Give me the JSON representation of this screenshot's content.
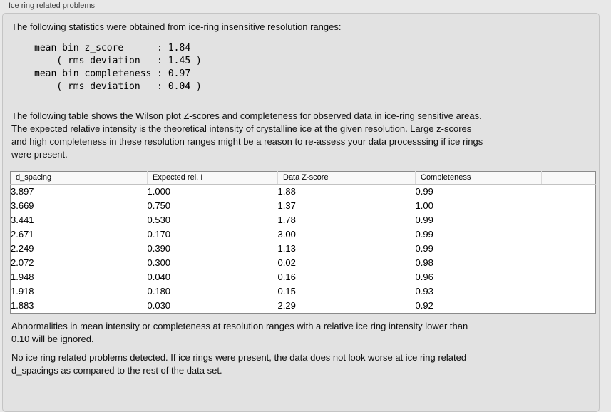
{
  "panel": {
    "title": "Ice ring related problems"
  },
  "intro": "The following statistics were obtained from ice-ring insensitive resolution ranges:",
  "stats_block": "mean bin z_score      : 1.84\n    ( rms deviation   : 1.45 )\nmean bin completeness : 0.97\n    ( rms deviation   : 0.04 )",
  "stats": {
    "mean_bin_z_score": "1.84",
    "z_score_rms_deviation": "1.45",
    "mean_bin_completeness": "0.97",
    "completeness_rms_deviation": "0.04"
  },
  "table_intro": "The following table shows the Wilson plot Z-scores and completeness for observed data in ice-ring sensitive areas.\nThe expected relative intensity is the theoretical intensity of crystalline ice at the given resolution. Large z-scores\nand high completeness in these resolution ranges might be a reason to re-assess your data processsing if ice rings\nwere present.",
  "table": {
    "headers": [
      "d_spacing",
      "Expected rel. I",
      "Data Z-score",
      "Completeness",
      ""
    ],
    "rows": [
      [
        "3.897",
        "1.000",
        "1.88",
        "0.99"
      ],
      [
        "3.669",
        "0.750",
        "1.37",
        "1.00"
      ],
      [
        "3.441",
        "0.530",
        "1.78",
        "0.99"
      ],
      [
        "2.671",
        "0.170",
        "3.00",
        "0.99"
      ],
      [
        "2.249",
        "0.390",
        "1.13",
        "0.99"
      ],
      [
        "2.072",
        "0.300",
        "0.02",
        "0.98"
      ],
      [
        "1.948",
        "0.040",
        "0.16",
        "0.96"
      ],
      [
        "1.918",
        "0.180",
        "0.15",
        "0.93"
      ],
      [
        "1.883",
        "0.030",
        "2.29",
        "0.92"
      ]
    ]
  },
  "ignore_note": "Abnormalities in mean intensity or completeness at resolution ranges with a relative ice ring intensity lower than\n0.10 will be ignored.",
  "conclusion": "No ice ring related problems detected. If ice rings were present, the data does not look worse at ice ring related\nd_spacings as compared to the rest of the data set.",
  "colors": {
    "background": "#e8e8e8",
    "groupbox_bg": "#e2e2e2",
    "groupbox_border": "#c4c4c4",
    "table_border": "#8a8a8a",
    "table_header_bg": "#f8f8f8"
  }
}
